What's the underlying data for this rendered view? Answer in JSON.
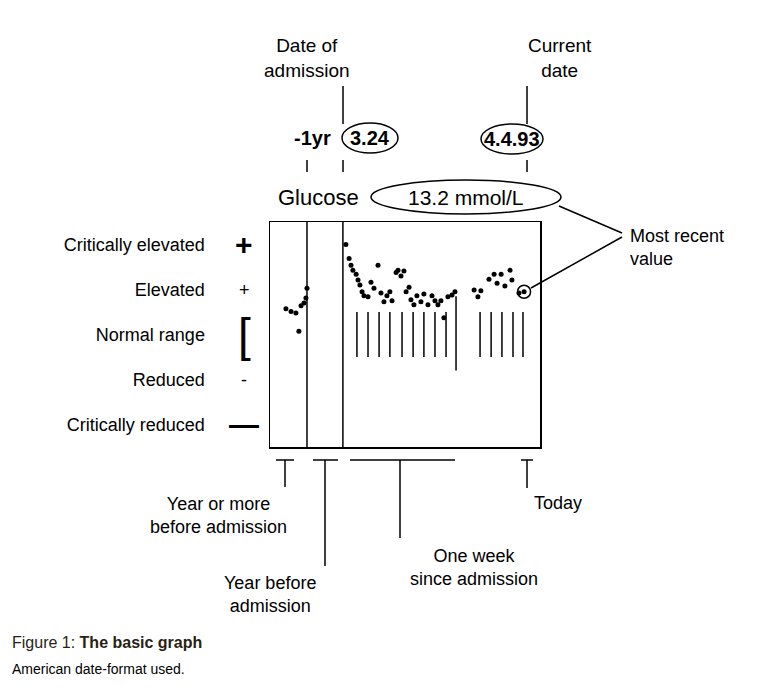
{
  "chart_data": {
    "type": "scatter",
    "title": "Glucose",
    "latest_value": "13.2 mmol/L",
    "color": "#000000",
    "marker": "circle",
    "x": [
      5.9,
      7.8,
      9.6,
      10.7,
      11.5,
      12.6,
      13.3,
      13.7,
      28.1,
      29.3,
      30.0,
      30.7,
      31.9,
      32.6,
      33.3,
      34.1,
      34.8,
      36.3,
      37.4,
      38.5,
      40.0,
      41.1,
      42.2,
      43.3,
      44.4,
      45.2,
      46.7,
      47.4,
      48.5,
      49.6,
      50.4,
      51.5,
      52.2,
      53.3,
      54.4,
      55.9,
      57.0,
      58.5,
      60.0,
      61.1,
      62.2,
      63.3,
      64.4,
      65.9,
      67.4,
      68.5,
      75.6,
      77.0,
      78.1,
      81.1,
      83.0,
      84.1,
      85.6,
      87.0,
      88.9,
      89.6,
      92.2,
      94.1
    ],
    "values": [
      0.57,
      0.51,
      0.48,
      0.07,
      0.64,
      0.7,
      0.81,
      1.03,
      2.0,
      1.69,
      1.54,
      1.43,
      1.34,
      1.21,
      1.1,
      0.95,
      0.86,
      0.84,
      1.16,
      1.03,
      1.54,
      0.92,
      0.73,
      0.86,
      0.95,
      0.75,
      1.38,
      1.43,
      1.3,
      1.41,
      0.95,
      1.05,
      0.77,
      0.66,
      0.86,
      0.73,
      0.9,
      0.66,
      0.86,
      0.75,
      0.66,
      0.75,
      0.37,
      0.84,
      0.88,
      0.95,
      0.99,
      0.84,
      0.97,
      1.23,
      1.34,
      1.14,
      1.34,
      1.08,
      1.43,
      1.21,
      0.92,
      0.95
    ],
    "xlim": [
      0,
      100
    ],
    "xticks": [],
    "ylim": [
      -2.5,
      2.5
    ],
    "yticks": [
      {
        "value": 2,
        "label": "Critically elevated"
      },
      {
        "value": 1,
        "label": "Elevated"
      },
      {
        "value": 0,
        "label": "Normal range"
      },
      {
        "value": -1,
        "label": "Reduced"
      },
      {
        "value": -2,
        "label": "Critically reduced"
      }
    ],
    "level_symbols": [
      "+",
      "+",
      "[",
      "-",
      "—"
    ],
    "tick_labels": "y",
    "grid": false,
    "period_bounds": [
      13.7,
      27.0
    ],
    "day_marks": [
      32.2,
      36.3,
      40.4,
      44.4,
      48.9,
      53.0,
      57.0,
      61.1,
      65.2,
      77.8,
      81.9,
      85.9,
      90.0,
      93.7
    ],
    "week_mark": 68.9,
    "labels": {
      "date_of_admission": [
        "Date of",
        "admission"
      ],
      "current_date": [
        "Current",
        "date"
      ],
      "prior": "-1yr",
      "admission_date": "3.24",
      "today_date": "4.4.93",
      "most_recent": [
        "Most recent",
        "value"
      ],
      "period_old": [
        "Year or more",
        "before admission"
      ],
      "period_year": [
        "Year before",
        "admission"
      ],
      "period_week": [
        "One week",
        "since admission"
      ],
      "today": "Today"
    },
    "caption": {
      "label": "Figure 1:",
      "title": "The basic graph"
    },
    "note": "American date-format used."
  }
}
